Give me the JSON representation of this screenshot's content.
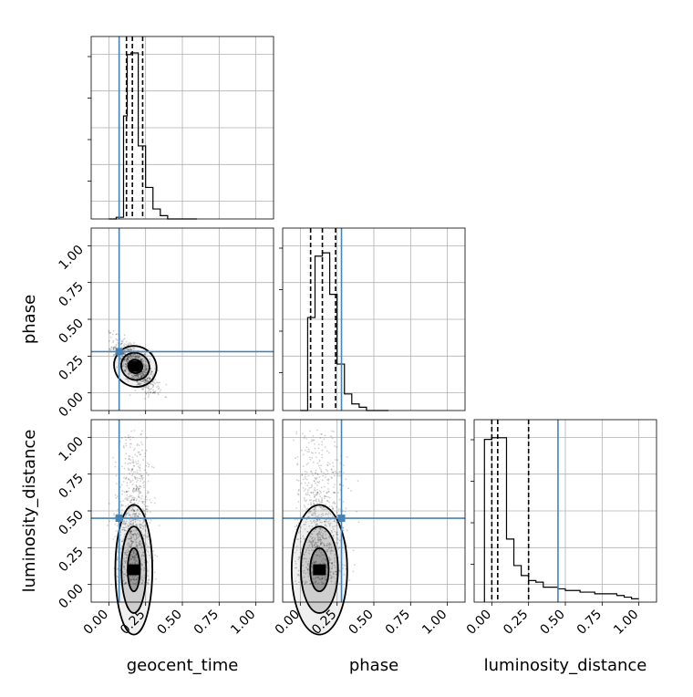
{
  "colors": {
    "truth": "#4682b4",
    "hist": "#000000",
    "grid": "#b0b0b0",
    "frame": "#000000",
    "points": "#000000"
  },
  "chart_data": {
    "type": "corner",
    "parameters": [
      "geocent_time",
      "phase",
      "luminosity_distance"
    ],
    "xlabels": {
      "geocent_time": "geocent_time",
      "phase": "phase",
      "luminosity_distance": "luminosity_distance"
    },
    "ylabels": {
      "phase": "phase",
      "luminosity_distance": "luminosity_distance"
    },
    "ticks": [
      0.0,
      0.25,
      0.5,
      0.75,
      1.0
    ],
    "tick_labels": [
      "0.00",
      "0.25",
      "0.50",
      "0.75",
      "1.00"
    ],
    "axis_range": [
      -0.12,
      1.12
    ],
    "grid": true,
    "truths": {
      "geocent_time": 0.07,
      "phase": 0.28,
      "luminosity_distance": 0.45
    },
    "quantiles": {
      "geocent_time": [
        0.12,
        0.16,
        0.23
      ],
      "phase": [
        0.07,
        0.15,
        0.24
      ],
      "luminosity_distance": [
        0.0,
        0.04,
        0.25
      ]
    },
    "histograms": {
      "geocent_time": {
        "edges": [
          0.0,
          0.05,
          0.1,
          0.125,
          0.15,
          0.2,
          0.25,
          0.3,
          0.35,
          0.4,
          0.45,
          0.5,
          0.55,
          0.6
        ],
        "counts": [
          0.0,
          0.01,
          0.62,
          0.99,
          1.0,
          0.44,
          0.19,
          0.06,
          0.02,
          0.0,
          0.0,
          0.0,
          0.0
        ]
      },
      "phase": {
        "edges": [
          0.0,
          0.05,
          0.1,
          0.15,
          0.2,
          0.25,
          0.3,
          0.35,
          0.4,
          0.45,
          0.5,
          0.55,
          0.6
        ],
        "counts": [
          0.0,
          0.56,
          0.93,
          0.95,
          0.7,
          0.28,
          0.1,
          0.04,
          0.02,
          0.0,
          0.0,
          0.0
        ]
      },
      "luminosity_distance": {
        "edges": [
          -0.05,
          0.0,
          0.05,
          0.1,
          0.15,
          0.2,
          0.25,
          0.3,
          0.35,
          0.4,
          0.45,
          0.5,
          0.55,
          0.6,
          0.65,
          0.7,
          0.75,
          0.8,
          0.85,
          0.9,
          0.95,
          1.0
        ],
        "counts": [
          0.98,
          0.99,
          0.99,
          0.38,
          0.22,
          0.16,
          0.13,
          0.12,
          0.09,
          0.09,
          0.08,
          0.07,
          0.07,
          0.06,
          0.06,
          0.05,
          0.05,
          0.05,
          0.04,
          0.03,
          0.02
        ]
      }
    },
    "scatter_2d": {
      "geocent_time_vs_phase": {
        "x_center": 0.18,
        "y_center": 0.18,
        "x_spread": 0.07,
        "y_spread": 0.09,
        "correlation": -0.75
      },
      "geocent_time_vs_luminosity_distance": {
        "x_center": 0.17,
        "y_center": 0.15,
        "x_spread": 0.06,
        "y_spread": 0.25
      },
      "phase_vs_luminosity_distance": {
        "x_center": 0.13,
        "y_center": 0.15,
        "x_spread": 0.09,
        "y_spread": 0.25
      }
    }
  }
}
